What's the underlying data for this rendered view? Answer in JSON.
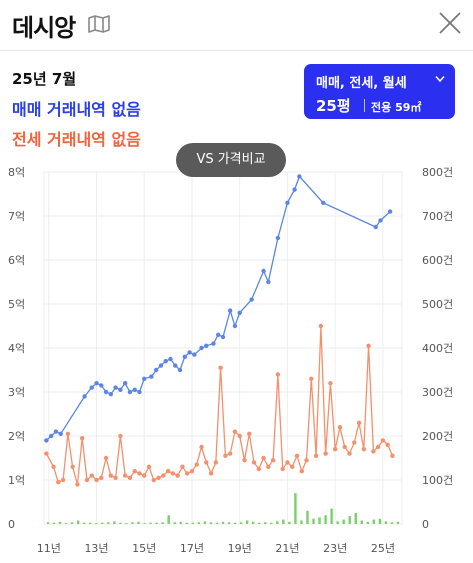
{
  "header": {
    "title": "데시앙",
    "map_icon": "map-icon",
    "close_icon": "close-icon"
  },
  "summary": {
    "date": "25년 7월",
    "sale_status": "매매 거래내역 없음",
    "lease_status": "전세 거래내역 없음"
  },
  "filter": {
    "types": "매매, 전세, 월세",
    "size": "25평",
    "area": "전용 59㎡"
  },
  "compare_button": "VS 가격비교",
  "colors": {
    "sale": "#5b86e5",
    "lease": "#f4906c",
    "volume": "#7ccf6a",
    "accent": "#2a2ff0"
  },
  "chart_data": {
    "type": "line",
    "x_ticks": [
      "11년",
      "13년",
      "15년",
      "17년",
      "19년",
      "21년",
      "23년",
      "25년"
    ],
    "y_left_ticks": [
      "0",
      "1억",
      "2억",
      "3억",
      "4억",
      "5억",
      "6억",
      "7억",
      "8억"
    ],
    "y_right_ticks": [
      "0",
      "100건",
      "200건",
      "300건",
      "400건",
      "500건",
      "600건",
      "700건",
      "800건"
    ],
    "xlim": [
      2010.8,
      2025.8
    ],
    "ylim_left": [
      0,
      8
    ],
    "ylim_right": [
      0,
      800
    ],
    "grid": true,
    "series": [
      {
        "kind": "sale_price",
        "axis": "left",
        "x": [
          2010.9,
          2011.1,
          2011.3,
          2011.5,
          2012.5,
          2012.8,
          2013.0,
          2013.2,
          2013.4,
          2013.6,
          2013.8,
          2014.0,
          2014.2,
          2014.4,
          2014.6,
          2014.8,
          2015.0,
          2015.3,
          2015.5,
          2015.7,
          2015.9,
          2016.1,
          2016.3,
          2016.5,
          2016.7,
          2016.9,
          2017.1,
          2017.4,
          2017.6,
          2017.9,
          2018.1,
          2018.3,
          2018.6,
          2018.8,
          2019.0,
          2019.5,
          2020.0,
          2020.2,
          2020.6,
          2021.0,
          2021.3,
          2021.5,
          2022.5,
          2024.7,
          2024.9,
          2025.3
        ],
        "values": [
          1.9,
          2.0,
          2.1,
          2.05,
          2.9,
          3.1,
          3.2,
          3.15,
          3.0,
          2.95,
          3.1,
          3.05,
          3.2,
          3.0,
          3.05,
          3.0,
          3.3,
          3.35,
          3.5,
          3.6,
          3.7,
          3.75,
          3.6,
          3.5,
          3.8,
          3.9,
          3.85,
          4.0,
          4.05,
          4.1,
          4.3,
          4.25,
          4.85,
          4.5,
          4.8,
          5.1,
          5.75,
          5.5,
          6.5,
          7.3,
          7.6,
          7.9,
          7.3,
          6.75,
          6.9,
          7.1
        ]
      },
      {
        "kind": "lease_volume",
        "axis": "right",
        "x": [
          2010.9,
          2011.2,
          2011.4,
          2011.6,
          2011.8,
          2012.0,
          2012.2,
          2012.4,
          2012.6,
          2012.8,
          2013.0,
          2013.2,
          2013.4,
          2013.6,
          2013.8,
          2014.0,
          2014.2,
          2014.4,
          2014.6,
          2014.8,
          2015.0,
          2015.2,
          2015.4,
          2015.6,
          2015.8,
          2016.0,
          2016.2,
          2016.4,
          2016.6,
          2016.8,
          2017.0,
          2017.2,
          2017.4,
          2017.6,
          2017.8,
          2018.0,
          2018.2,
          2018.4,
          2018.6,
          2018.8,
          2019.0,
          2019.2,
          2019.4,
          2019.6,
          2019.8,
          2020.0,
          2020.2,
          2020.4,
          2020.6,
          2020.8,
          2021.0,
          2021.2,
          2021.4,
          2021.6,
          2021.8,
          2022.0,
          2022.2,
          2022.4,
          2022.6,
          2022.8,
          2023.0,
          2023.2,
          2023.4,
          2023.6,
          2023.8,
          2024.0,
          2024.2,
          2024.4,
          2024.6,
          2024.8,
          2025.0,
          2025.2,
          2025.4
        ],
        "values": [
          160,
          130,
          95,
          100,
          205,
          130,
          90,
          195,
          100,
          110,
          100,
          105,
          150,
          110,
          105,
          200,
          110,
          105,
          120,
          115,
          110,
          130,
          100,
          105,
          110,
          120,
          115,
          110,
          130,
          115,
          120,
          135,
          175,
          140,
          115,
          140,
          355,
          155,
          160,
          210,
          200,
          145,
          205,
          140,
          125,
          150,
          130,
          145,
          340,
          125,
          140,
          130,
          155,
          120,
          145,
          330,
          155,
          450,
          160,
          320,
          170,
          220,
          175,
          160,
          185,
          230,
          170,
          405,
          165,
          175,
          190,
          180,
          155
        ]
      }
    ],
    "volume_bars": [
      4,
      3,
      5,
      2,
      4,
      8,
      3,
      3,
      2,
      3,
      4,
      6,
      3,
      2,
      4,
      5,
      2,
      3,
      3,
      4,
      20,
      4,
      5,
      3,
      3,
      4,
      6,
      4,
      3,
      5,
      4,
      3,
      4,
      8,
      5,
      3,
      4,
      3,
      6,
      10,
      5,
      70,
      8,
      30,
      12,
      15,
      20,
      35,
      6,
      10,
      18,
      25,
      8,
      5,
      10,
      12,
      6,
      4,
      5
    ]
  }
}
